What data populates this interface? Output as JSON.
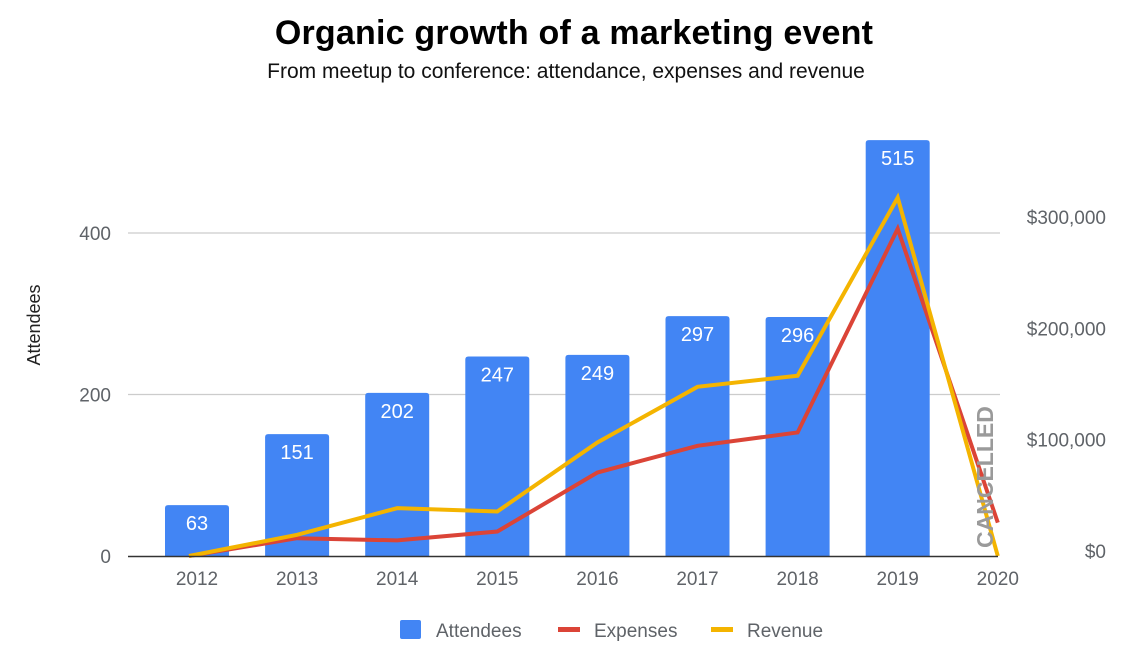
{
  "chart_data": {
    "type": "bar",
    "title": "Organic growth of a marketing event",
    "subtitle": "From meetup to conference: attendance, expenses and revenue",
    "categories": [
      "2012",
      "2013",
      "2014",
      "2015",
      "2016",
      "2017",
      "2018",
      "2019",
      "2020"
    ],
    "series": [
      {
        "name": "Attendees",
        "type": "bar",
        "axis": "left",
        "color": "#4285f4",
        "values": [
          63,
          151,
          202,
          247,
          249,
          297,
          296,
          515,
          null
        ],
        "data_labels": [
          "63",
          "151",
          "202",
          "247",
          "249",
          "297",
          "296",
          "515",
          ""
        ]
      },
      {
        "name": "Expenses",
        "type": "line",
        "axis": "right",
        "color": "#db4437",
        "values": [
          0,
          16000,
          14000,
          22000,
          75000,
          99000,
          111000,
          294000,
          30000
        ]
      },
      {
        "name": "Revenue",
        "type": "line",
        "axis": "right",
        "color": "#f4b400",
        "values": [
          0,
          19000,
          43000,
          40000,
          102000,
          152000,
          162000,
          322000,
          0
        ]
      }
    ],
    "ylabel": "Attendees",
    "ylim": [
      0,
      600
    ],
    "yticks": [
      0,
      200,
      400
    ],
    "ytick_labels": [
      "0",
      "200",
      "400"
    ],
    "y2label": "",
    "y2lim": [
      0,
      500000
    ],
    "y2ticks": [
      0,
      100000,
      200000,
      300000
    ],
    "y2tick_labels": [
      "$0",
      "$100,000",
      "$200,000",
      "$300,000"
    ],
    "grid": true,
    "legend": {
      "position": "bottom",
      "entries": [
        "Attendees",
        "Expenses",
        "Revenue"
      ]
    },
    "annotations": [
      {
        "category": "2020",
        "text": "CANCELLED",
        "orientation": "vertical"
      }
    ]
  }
}
